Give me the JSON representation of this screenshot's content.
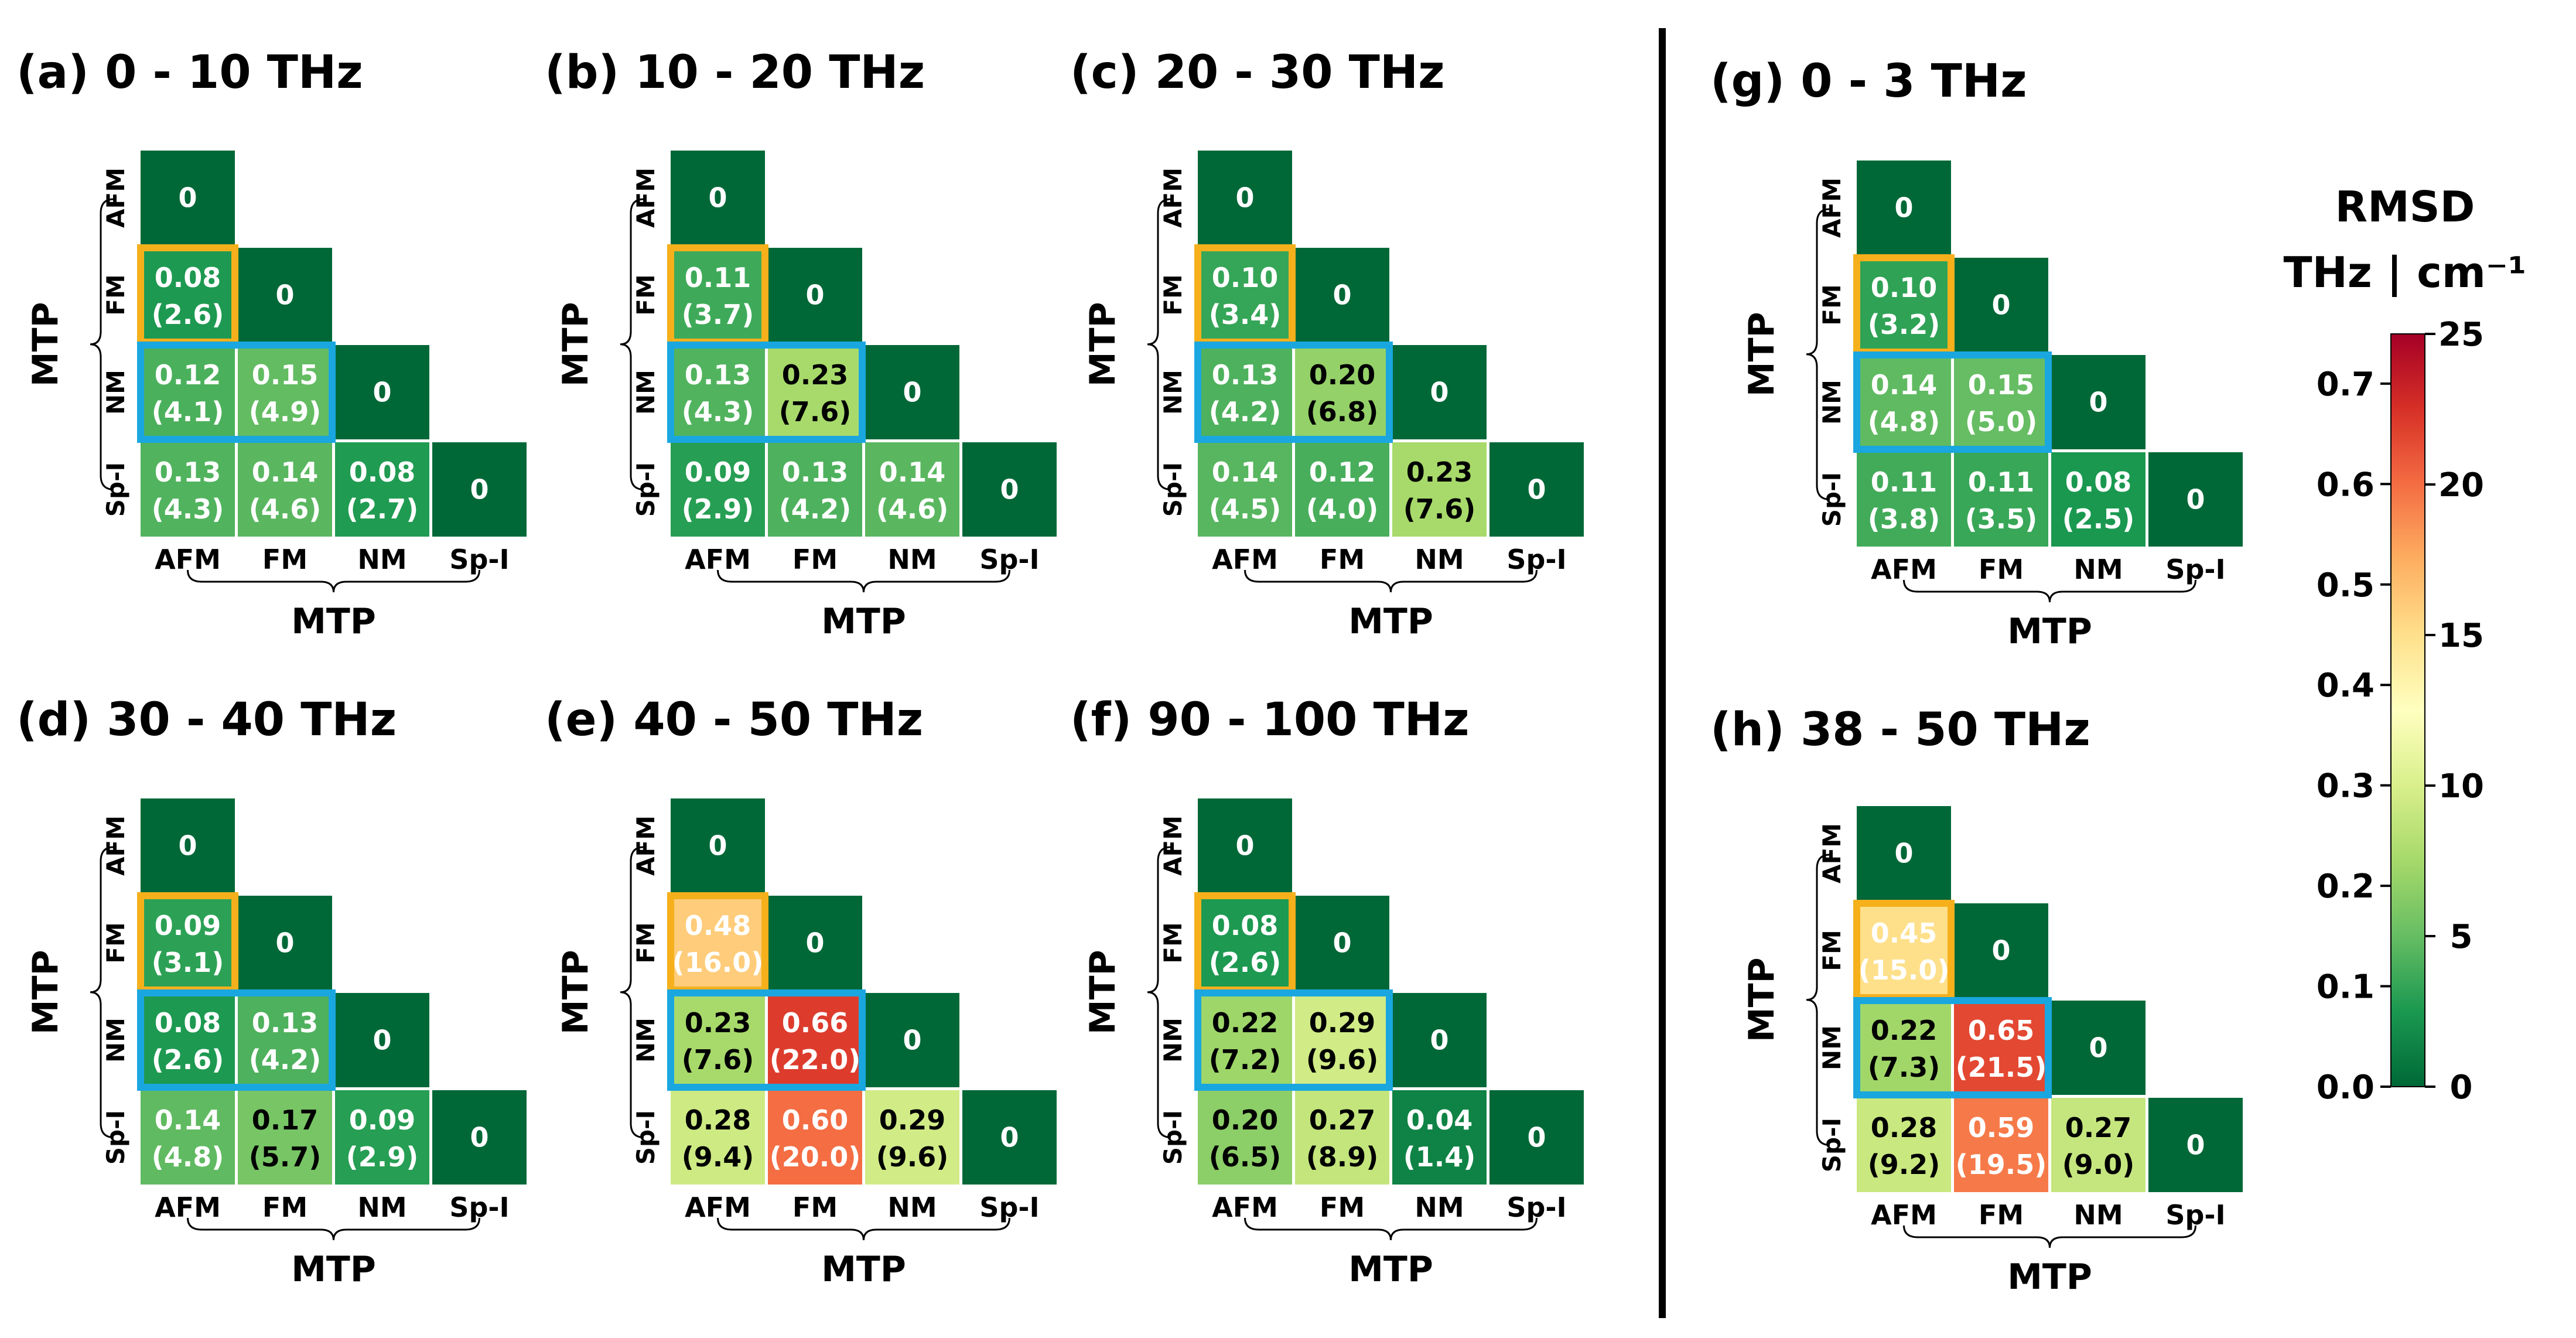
{
  "figure": {
    "colorbar": {
      "title_line1": "RMSD",
      "title_line2": "THz | cm⁻¹",
      "left_ticks": [
        "0.0",
        "0.1",
        "0.2",
        "0.3",
        "0.4",
        "0.5",
        "0.6",
        "0.7"
      ],
      "right_ticks": [
        "0",
        "5",
        "10",
        "15",
        "20",
        "25"
      ],
      "colormap": [
        "#006837",
        "#1a9850",
        "#66bd63",
        "#a6d96a",
        "#d9ef8b",
        "#ffffbf",
        "#fee08b",
        "#fdae61",
        "#f46d43",
        "#d73027",
        "#a50026"
      ],
      "vmin": 0,
      "vmax": 25
    },
    "highlight_colors": {
      "fm_box": "#f5b01c",
      "nm_box": "#1aa7e0"
    }
  },
  "chart_data": [
    {
      "type": "heatmap",
      "title": "(a) 0 - 10 THz",
      "xlabel": "MTP",
      "ylabel": "MTP",
      "rows": [
        "AFM",
        "FM",
        "NM",
        "Sp-I"
      ],
      "cols": [
        "AFM",
        "FM",
        "NM",
        "Sp-I"
      ],
      "cells": [
        [
          {
            "v": "0"
          }
        ],
        [
          {
            "v": "0.08",
            "cm": "(2.6)"
          },
          {
            "v": "0"
          }
        ],
        [
          {
            "v": "0.12",
            "cm": "(4.1)"
          },
          {
            "v": "0.15",
            "cm": "(4.9)"
          },
          {
            "v": "0"
          }
        ],
        [
          {
            "v": "0.13",
            "cm": "(4.3)"
          },
          {
            "v": "0.14",
            "cm": "(4.6)"
          },
          {
            "v": "0.08",
            "cm": "(2.7)"
          },
          {
            "v": "0"
          }
        ]
      ]
    },
    {
      "type": "heatmap",
      "title": "(b) 10 - 20 THz",
      "xlabel": "MTP",
      "ylabel": "MTP",
      "rows": [
        "AFM",
        "FM",
        "NM",
        "Sp-I"
      ],
      "cols": [
        "AFM",
        "FM",
        "NM",
        "Sp-I"
      ],
      "cells": [
        [
          {
            "v": "0"
          }
        ],
        [
          {
            "v": "0.11",
            "cm": "(3.7)"
          },
          {
            "v": "0"
          }
        ],
        [
          {
            "v": "0.13",
            "cm": "(4.3)"
          },
          {
            "v": "0.23",
            "cm": "(7.6)"
          },
          {
            "v": "0"
          }
        ],
        [
          {
            "v": "0.09",
            "cm": "(2.9)"
          },
          {
            "v": "0.13",
            "cm": "(4.2)"
          },
          {
            "v": "0.14",
            "cm": "(4.6)"
          },
          {
            "v": "0"
          }
        ]
      ]
    },
    {
      "type": "heatmap",
      "title": "(c) 20 - 30 THz",
      "xlabel": "MTP",
      "ylabel": "MTP",
      "rows": [
        "AFM",
        "FM",
        "NM",
        "Sp-I"
      ],
      "cols": [
        "AFM",
        "FM",
        "NM",
        "Sp-I"
      ],
      "cells": [
        [
          {
            "v": "0"
          }
        ],
        [
          {
            "v": "0.10",
            "cm": "(3.4)"
          },
          {
            "v": "0"
          }
        ],
        [
          {
            "v": "0.13",
            "cm": "(4.2)"
          },
          {
            "v": "0.20",
            "cm": "(6.8)"
          },
          {
            "v": "0"
          }
        ],
        [
          {
            "v": "0.14",
            "cm": "(4.5)"
          },
          {
            "v": "0.12",
            "cm": "(4.0)"
          },
          {
            "v": "0.23",
            "cm": "(7.6)"
          },
          {
            "v": "0"
          }
        ]
      ]
    },
    {
      "type": "heatmap",
      "title": "(d) 30 - 40 THz",
      "xlabel": "MTP",
      "ylabel": "MTP",
      "rows": [
        "AFM",
        "FM",
        "NM",
        "Sp-I"
      ],
      "cols": [
        "AFM",
        "FM",
        "NM",
        "Sp-I"
      ],
      "cells": [
        [
          {
            "v": "0"
          }
        ],
        [
          {
            "v": "0.09",
            "cm": "(3.1)"
          },
          {
            "v": "0"
          }
        ],
        [
          {
            "v": "0.08",
            "cm": "(2.6)"
          },
          {
            "v": "0.13",
            "cm": "(4.2)"
          },
          {
            "v": "0"
          }
        ],
        [
          {
            "v": "0.14",
            "cm": "(4.8)"
          },
          {
            "v": "0.17",
            "cm": "(5.7)"
          },
          {
            "v": "0.09",
            "cm": "(2.9)"
          },
          {
            "v": "0"
          }
        ]
      ]
    },
    {
      "type": "heatmap",
      "title": "(e) 40 - 50 THz",
      "xlabel": "MTP",
      "ylabel": "MTP",
      "rows": [
        "AFM",
        "FM",
        "NM",
        "Sp-I"
      ],
      "cols": [
        "AFM",
        "FM",
        "NM",
        "Sp-I"
      ],
      "cells": [
        [
          {
            "v": "0"
          }
        ],
        [
          {
            "v": "0.48",
            "cm": "(16.0)"
          },
          {
            "v": "0"
          }
        ],
        [
          {
            "v": "0.23",
            "cm": "(7.6)"
          },
          {
            "v": "0.66",
            "cm": "(22.0)"
          },
          {
            "v": "0"
          }
        ],
        [
          {
            "v": "0.28",
            "cm": "(9.4)"
          },
          {
            "v": "0.60",
            "cm": "(20.0)"
          },
          {
            "v": "0.29",
            "cm": "(9.6)"
          },
          {
            "v": "0"
          }
        ]
      ]
    },
    {
      "type": "heatmap",
      "title": "(f) 90 - 100 THz",
      "xlabel": "MTP",
      "ylabel": "MTP",
      "rows": [
        "AFM",
        "FM",
        "NM",
        "Sp-I"
      ],
      "cols": [
        "AFM",
        "FM",
        "NM",
        "Sp-I"
      ],
      "cells": [
        [
          {
            "v": "0"
          }
        ],
        [
          {
            "v": "0.08",
            "cm": "(2.6)"
          },
          {
            "v": "0"
          }
        ],
        [
          {
            "v": "0.22",
            "cm": "(7.2)"
          },
          {
            "v": "0.29",
            "cm": "(9.6)"
          },
          {
            "v": "0"
          }
        ],
        [
          {
            "v": "0.20",
            "cm": "(6.5)"
          },
          {
            "v": "0.27",
            "cm": "(8.9)"
          },
          {
            "v": "0.04",
            "cm": "(1.4)"
          },
          {
            "v": "0"
          }
        ]
      ]
    },
    {
      "type": "heatmap",
      "title": "(g) 0 - 3 THz",
      "xlabel": "MTP",
      "ylabel": "MTP",
      "rows": [
        "AFM",
        "FM",
        "NM",
        "Sp-I"
      ],
      "cols": [
        "AFM",
        "FM",
        "NM",
        "Sp-I"
      ],
      "cells": [
        [
          {
            "v": "0"
          }
        ],
        [
          {
            "v": "0.10",
            "cm": "(3.2)"
          },
          {
            "v": "0"
          }
        ],
        [
          {
            "v": "0.14",
            "cm": "(4.8)"
          },
          {
            "v": "0.15",
            "cm": "(5.0)"
          },
          {
            "v": "0"
          }
        ],
        [
          {
            "v": "0.11",
            "cm": "(3.8)"
          },
          {
            "v": "0.11",
            "cm": "(3.5)"
          },
          {
            "v": "0.08",
            "cm": "(2.5)"
          },
          {
            "v": "0"
          }
        ]
      ]
    },
    {
      "type": "heatmap",
      "title": "(h) 38 - 50 THz",
      "xlabel": "MTP",
      "ylabel": "MTP",
      "rows": [
        "AFM",
        "FM",
        "NM",
        "Sp-I"
      ],
      "cols": [
        "AFM",
        "FM",
        "NM",
        "Sp-I"
      ],
      "cells": [
        [
          {
            "v": "0"
          }
        ],
        [
          {
            "v": "0.45",
            "cm": "(15.0)"
          },
          {
            "v": "0"
          }
        ],
        [
          {
            "v": "0.22",
            "cm": "(7.3)"
          },
          {
            "v": "0.65",
            "cm": "(21.5)"
          },
          {
            "v": "0"
          }
        ],
        [
          {
            "v": "0.28",
            "cm": "(9.2)"
          },
          {
            "v": "0.59",
            "cm": "(19.5)"
          },
          {
            "v": "0.27",
            "cm": "(9.0)"
          },
          {
            "v": "0"
          }
        ]
      ]
    }
  ]
}
